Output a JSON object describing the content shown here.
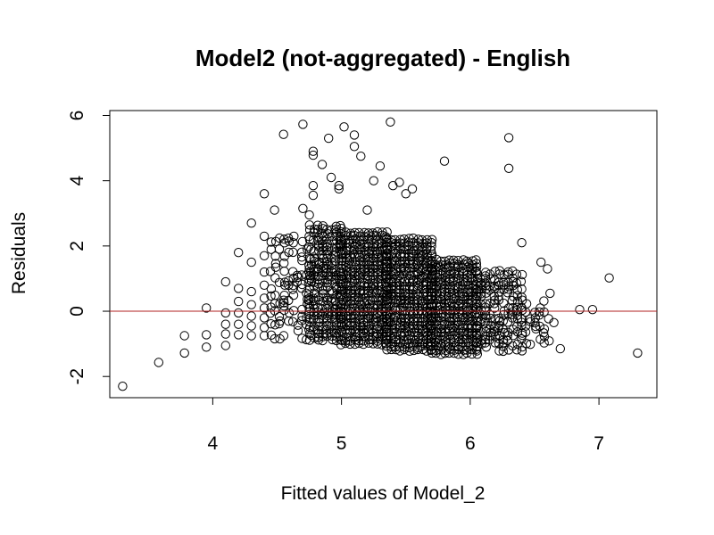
{
  "chart_data": {
    "type": "scatter",
    "title": "Model2 (not-aggregated) - English",
    "xlabel": "Fitted values of Model_2",
    "ylabel": "Residuals",
    "xlim": [
      3.2,
      7.45
    ],
    "ylim": [
      -2.65,
      6.15
    ],
    "x_ticks": [
      4,
      5,
      6,
      7
    ],
    "y_ticks": [
      -2,
      0,
      2,
      4,
      6
    ],
    "x_tick_labels": [
      "4",
      "5",
      "6",
      "7"
    ],
    "y_tick_labels": [
      "-2",
      "0",
      "2",
      "4",
      "6"
    ],
    "grid": false,
    "legend": "none",
    "reference_line": {
      "y": 0,
      "color": "#b22222"
    },
    "point_color": "#000000",
    "points": [
      [
        3.3,
        -2.3
      ],
      [
        3.58,
        -1.57
      ],
      [
        3.78,
        -1.28
      ],
      [
        3.78,
        -0.75
      ],
      [
        3.95,
        -1.1
      ],
      [
        3.95,
        -0.72
      ],
      [
        3.95,
        0.1
      ],
      [
        4.1,
        -1.05
      ],
      [
        4.1,
        -0.7
      ],
      [
        4.1,
        -0.4
      ],
      [
        4.1,
        -0.05
      ],
      [
        4.1,
        0.9
      ],
      [
        4.2,
        -0.72
      ],
      [
        4.2,
        -0.4
      ],
      [
        4.2,
        -0.05
      ],
      [
        4.2,
        0.3
      ],
      [
        4.2,
        0.7
      ],
      [
        4.2,
        1.8
      ],
      [
        4.3,
        -0.75
      ],
      [
        4.3,
        -0.45
      ],
      [
        4.3,
        -0.15
      ],
      [
        4.3,
        0.2
      ],
      [
        4.3,
        0.6
      ],
      [
        4.3,
        1.5
      ],
      [
        4.3,
        2.7
      ],
      [
        4.4,
        -0.75
      ],
      [
        4.4,
        -0.5
      ],
      [
        4.4,
        -0.2
      ],
      [
        4.4,
        0.1
      ],
      [
        4.4,
        0.4
      ],
      [
        4.4,
        0.8
      ],
      [
        4.4,
        1.2
      ],
      [
        4.4,
        1.7
      ],
      [
        4.4,
        2.3
      ],
      [
        4.4,
        3.6
      ],
      [
        4.48,
        3.1
      ],
      [
        4.55,
        5.42
      ],
      [
        4.63,
        2.3
      ],
      [
        4.7,
        5.73
      ],
      [
        4.7,
        3.15
      ],
      [
        4.75,
        2.95
      ],
      [
        4.78,
        4.9
      ],
      [
        4.78,
        4.78
      ],
      [
        4.78,
        3.85
      ],
      [
        4.78,
        3.55
      ],
      [
        4.85,
        4.5
      ],
      [
        4.9,
        5.3
      ],
      [
        4.92,
        4.1
      ],
      [
        4.98,
        3.85
      ],
      [
        4.98,
        3.75
      ],
      [
        5.02,
        5.65
      ],
      [
        5.1,
        5.4
      ],
      [
        5.1,
        5.05
      ],
      [
        5.15,
        4.75
      ],
      [
        5.2,
        3.1
      ],
      [
        5.25,
        4.0
      ],
      [
        5.3,
        4.45
      ],
      [
        5.38,
        5.8
      ],
      [
        5.4,
        3.85
      ],
      [
        5.45,
        3.95
      ],
      [
        5.5,
        3.6
      ],
      [
        5.55,
        3.75
      ],
      [
        5.8,
        4.6
      ],
      [
        6.3,
        5.32
      ],
      [
        6.3,
        4.38
      ],
      [
        6.4,
        2.1
      ],
      [
        6.55,
        1.5
      ],
      [
        6.6,
        1.3
      ],
      [
        6.62,
        0.55
      ],
      [
        6.65,
        -0.35
      ],
      [
        6.7,
        -1.15
      ],
      [
        6.85,
        0.05
      ],
      [
        6.95,
        0.05
      ],
      [
        7.08,
        1.02
      ],
      [
        7.3,
        -1.28
      ]
    ],
    "dense_regions": [
      {
        "x_range": [
          4.45,
          4.75
        ],
        "y_range": [
          -0.85,
          2.2
        ],
        "density": 0.35
      },
      {
        "x_range": [
          4.75,
          5.0
        ],
        "y_range": [
          -0.9,
          2.6
        ],
        "density": 0.8
      },
      {
        "x_range": [
          5.0,
          5.35
        ],
        "y_range": [
          -1.0,
          2.4
        ],
        "density": 1.0
      },
      {
        "x_range": [
          5.35,
          5.7
        ],
        "y_range": [
          -1.2,
          2.2
        ],
        "density": 1.0
      },
      {
        "x_range": [
          5.7,
          6.05
        ],
        "y_range": [
          -1.3,
          1.6
        ],
        "density": 1.0
      },
      {
        "x_range": [
          6.05,
          6.4
        ],
        "y_range": [
          -1.2,
          1.2
        ],
        "density": 0.6
      },
      {
        "x_range": [
          6.4,
          6.6
        ],
        "y_range": [
          -1.0,
          0.3
        ],
        "density": 0.3
      }
    ]
  }
}
